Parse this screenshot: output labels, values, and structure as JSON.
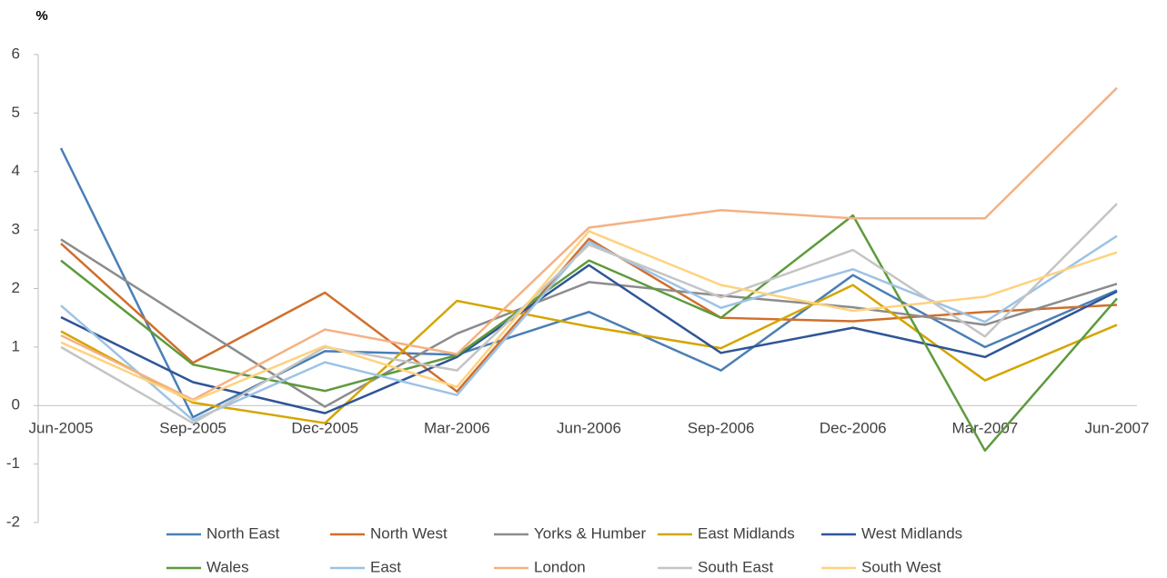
{
  "chart_data": {
    "type": "line",
    "y_label": "%",
    "categories": [
      "Jun-2005",
      "Sep-2005",
      "Dec-2005",
      "Mar-2006",
      "Jun-2006",
      "Sep-2006",
      "Dec-2006",
      "Mar-2007",
      "Jun-2007"
    ],
    "ylim": [
      -2,
      6
    ],
    "yticks": [
      -2,
      -1,
      0,
      1,
      2,
      3,
      4,
      5,
      6
    ],
    "series": [
      {
        "name": "North East",
        "color": "#4a7fb5",
        "values": [
          4.4,
          -0.2,
          0.93,
          0.87,
          1.6,
          0.6,
          2.23,
          1.0,
          1.97
        ]
      },
      {
        "name": "North West",
        "color": "#d06f2d",
        "values": [
          2.77,
          0.73,
          1.93,
          0.24,
          2.85,
          1.5,
          1.44,
          1.6,
          1.72
        ]
      },
      {
        "name": "Yorks & Humber",
        "color": "#8c8c8c",
        "values": [
          2.84,
          1.4,
          -0.02,
          1.23,
          2.11,
          1.88,
          1.68,
          1.38,
          2.08
        ]
      },
      {
        "name": "East Midlands",
        "color": "#d4a500",
        "values": [
          1.27,
          0.05,
          -0.3,
          1.79,
          1.35,
          0.98,
          2.06,
          0.43,
          1.38
        ]
      },
      {
        "name": "West Midlands",
        "color": "#2f5597",
        "values": [
          1.51,
          0.4,
          -0.13,
          0.83,
          2.4,
          0.9,
          1.33,
          0.83,
          1.95
        ]
      },
      {
        "name": "Wales",
        "color": "#5e9a3c",
        "values": [
          2.48,
          0.7,
          0.25,
          0.86,
          2.48,
          1.5,
          3.25,
          -0.77,
          1.83
        ]
      },
      {
        "name": "East",
        "color": "#9dc3e6",
        "values": [
          1.71,
          -0.25,
          0.74,
          0.18,
          2.8,
          1.67,
          2.33,
          1.43,
          2.9
        ]
      },
      {
        "name": "London",
        "color": "#f4b183",
        "values": [
          1.2,
          0.1,
          1.3,
          0.88,
          3.04,
          3.34,
          3.2,
          3.2,
          5.43
        ]
      },
      {
        "name": "South East",
        "color": "#c4c4c4",
        "values": [
          1.0,
          -0.3,
          1.0,
          0.6,
          2.75,
          1.85,
          2.66,
          1.18,
          3.45
        ]
      },
      {
        "name": "South West",
        "color": "#ffd27f",
        "values": [
          1.08,
          0.08,
          1.02,
          0.32,
          2.98,
          2.06,
          1.62,
          1.86,
          2.62
        ]
      }
    ]
  }
}
